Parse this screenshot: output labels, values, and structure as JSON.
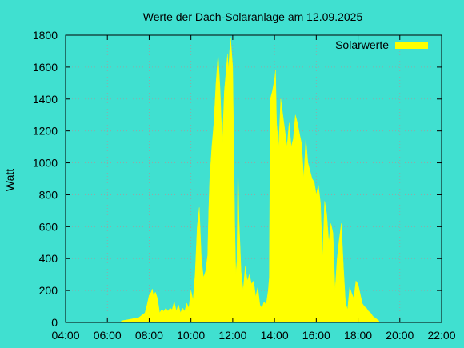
{
  "chart_data": {
    "type": "area",
    "title": "Werte der Dach-Solaranlage am 12.09.2025",
    "xlabel": "",
    "ylabel": "Watt",
    "xlim": [
      4,
      22
    ],
    "ylim": [
      0,
      1800
    ],
    "x_ticks": [
      4,
      6,
      8,
      10,
      12,
      14,
      16,
      18,
      20,
      22
    ],
    "x_tick_labels": [
      "04:00",
      "06:00",
      "08:00",
      "10:00",
      "12:00",
      "14:00",
      "16:00",
      "18:00",
      "20:00",
      "22:00"
    ],
    "y_ticks": [
      0,
      200,
      400,
      600,
      800,
      1000,
      1200,
      1400,
      1600,
      1800
    ],
    "y_tick_labels": [
      "0",
      "200",
      "400",
      "600",
      "800",
      "1000",
      "1200",
      "1400",
      "1600",
      "1800"
    ],
    "grid": true,
    "legend": "top-right",
    "series": [
      {
        "name": "Solarwerte",
        "color": "#ffff00",
        "x": [
          6.67,
          6.9,
          7.1,
          7.3,
          7.5,
          7.6,
          7.7,
          7.8,
          7.9,
          8.0,
          8.1,
          8.15,
          8.2,
          8.3,
          8.4,
          8.5,
          8.6,
          8.7,
          8.8,
          8.9,
          9.0,
          9.1,
          9.2,
          9.3,
          9.4,
          9.5,
          9.6,
          9.7,
          9.8,
          9.9,
          10.0,
          10.1,
          10.2,
          10.3,
          10.4,
          10.5,
          10.6,
          10.7,
          10.8,
          10.85,
          10.9,
          11.0,
          11.1,
          11.2,
          11.3,
          11.4,
          11.5,
          11.6,
          11.7,
          11.75,
          11.8,
          11.85,
          11.9,
          12.0,
          12.05,
          12.1,
          12.15,
          12.2,
          12.25,
          12.3,
          12.4,
          12.5,
          12.6,
          12.7,
          12.8,
          12.9,
          13.0,
          13.1,
          13.2,
          13.3,
          13.4,
          13.5,
          13.6,
          13.7,
          13.75,
          13.8,
          13.9,
          14.0,
          14.05,
          14.1,
          14.2,
          14.3,
          14.4,
          14.5,
          14.6,
          14.7,
          14.8,
          14.9,
          15.0,
          15.1,
          15.2,
          15.3,
          15.4,
          15.5,
          15.6,
          15.7,
          15.8,
          15.9,
          16.0,
          16.1,
          16.2,
          16.3,
          16.4,
          16.5,
          16.6,
          16.7,
          16.8,
          16.9,
          17.0,
          17.1,
          17.2,
          17.3,
          17.4,
          17.5,
          17.6,
          17.7,
          17.8,
          17.9,
          18.0,
          18.1,
          18.2,
          18.3,
          18.4,
          18.5,
          18.6,
          18.7,
          18.8,
          18.9,
          19.0
        ],
        "values": [
          10,
          15,
          20,
          25,
          30,
          40,
          50,
          60,
          110,
          170,
          190,
          210,
          170,
          190,
          150,
          60,
          80,
          70,
          90,
          70,
          90,
          80,
          130,
          70,
          110,
          60,
          90,
          70,
          120,
          90,
          200,
          140,
          300,
          600,
          720,
          400,
          280,
          320,
          420,
          700,
          900,
          1100,
          1250,
          1500,
          1680,
          1450,
          1100,
          1450,
          1600,
          1680,
          1580,
          1700,
          1780,
          1600,
          1100,
          600,
          300,
          380,
          1000,
          650,
          320,
          200,
          350,
          260,
          300,
          240,
          260,
          160,
          220,
          110,
          90,
          130,
          110,
          200,
          280,
          1400,
          1450,
          1520,
          1580,
          1250,
          1100,
          1400,
          1300,
          1200,
          1100,
          1250,
          1100,
          1150,
          1300,
          1250,
          1180,
          1120,
          900,
          1150,
          1000,
          950,
          900,
          880,
          800,
          860,
          750,
          400,
          760,
          680,
          500,
          620,
          560,
          200,
          400,
          520,
          620,
          350,
          120,
          80,
          220,
          180,
          150,
          260,
          240,
          180,
          120,
          100,
          90,
          70,
          60,
          40,
          30,
          20,
          10
        ]
      }
    ]
  }
}
